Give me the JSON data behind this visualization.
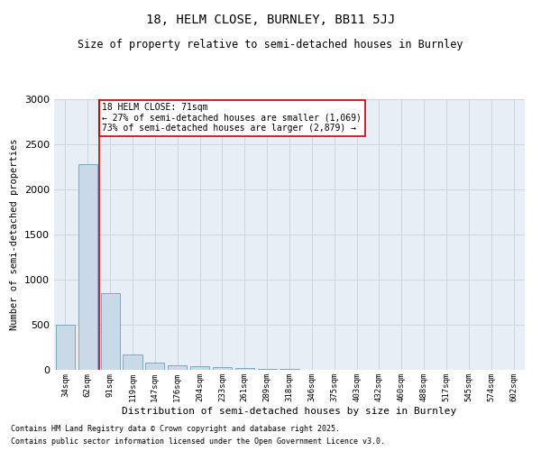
{
  "title1": "18, HELM CLOSE, BURNLEY, BB11 5JJ",
  "title2": "Size of property relative to semi-detached houses in Burnley",
  "xlabel": "Distribution of semi-detached houses by size in Burnley",
  "ylabel": "Number of semi-detached properties",
  "categories": [
    "34sqm",
    "62sqm",
    "91sqm",
    "119sqm",
    "147sqm",
    "176sqm",
    "204sqm",
    "233sqm",
    "261sqm",
    "289sqm",
    "318sqm",
    "346sqm",
    "375sqm",
    "403sqm",
    "432sqm",
    "460sqm",
    "488sqm",
    "517sqm",
    "545sqm",
    "574sqm",
    "602sqm"
  ],
  "values": [
    500,
    2280,
    850,
    175,
    80,
    55,
    40,
    30,
    20,
    15,
    10,
    5,
    3,
    2,
    1,
    1,
    0,
    0,
    0,
    0,
    0
  ],
  "bar_color": "#c9d9e8",
  "bar_edge_color": "#6a9fc0",
  "grid_color": "#cdd5e0",
  "background_color": "#e8eef5",
  "vline_color": "#cc0000",
  "vline_pos": 1.5,
  "annotation_text": "18 HELM CLOSE: 71sqm\n← 27% of semi-detached houses are smaller (1,069)\n73% of semi-detached houses are larger (2,879) →",
  "annotation_box_facecolor": "#ffffff",
  "annotation_box_edgecolor": "#cc0000",
  "ylim": [
    0,
    3000
  ],
  "yticks": [
    0,
    500,
    1000,
    1500,
    2000,
    2500,
    3000
  ],
  "footnote1": "Contains HM Land Registry data © Crown copyright and database right 2025.",
  "footnote2": "Contains public sector information licensed under the Open Government Licence v3.0."
}
